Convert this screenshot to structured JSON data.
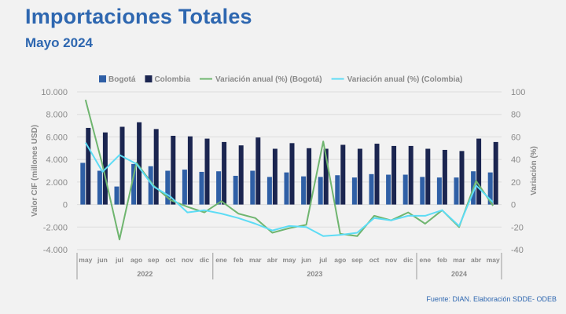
{
  "header": {
    "title": "Importaciones Totales",
    "subtitle": "Mayo 2024"
  },
  "footer": {
    "source": "Fuente: DIAN. Elaboración SDDE- ODEB"
  },
  "colors": {
    "bogota_bar": "#2f5fa6",
    "colombia_bar": "#1b2550",
    "bogota_line": "#6fb56f",
    "colombia_line": "#5ddcf5",
    "title": "#2e67b0"
  },
  "chart_data": {
    "type": "bar",
    "title": "",
    "ylabel": "Valor CIF (millones USD)",
    "y2label": "Variación (%)",
    "ylim": [
      -4000,
      10000
    ],
    "y2lim": [
      -40,
      100
    ],
    "yticks": [
      "10.000",
      "8.000",
      "6.000",
      "4.000",
      "2.000",
      "0",
      "-2.000",
      "-4.000"
    ],
    "y2ticks": [
      "100",
      "80",
      "60",
      "40",
      "20",
      "0",
      "-20",
      "-40"
    ],
    "legend_position": "top",
    "categories": [
      "may",
      "jun",
      "jul",
      "ago",
      "sep",
      "oct",
      "nov",
      "dic",
      "ene",
      "feb",
      "mar",
      "abr",
      "may",
      "jun",
      "jul",
      "ago",
      "sep",
      "oct",
      "nov",
      "dic",
      "ene",
      "feb",
      "mar",
      "abr",
      "may"
    ],
    "years": [
      {
        "label": "2022",
        "start": 0,
        "end": 7
      },
      {
        "label": "2023",
        "start": 8,
        "end": 19
      },
      {
        "label": "2024",
        "start": 20,
        "end": 24
      }
    ],
    "series": [
      {
        "name": "Bogotá",
        "kind": "bar",
        "axis": "left",
        "values": [
          3700,
          3000,
          1600,
          3600,
          3400,
          3000,
          3100,
          2900,
          2950,
          2550,
          3000,
          2450,
          2850,
          2500,
          2450,
          2600,
          2400,
          2700,
          2650,
          2650,
          2450,
          2400,
          2400,
          2950,
          2850
        ]
      },
      {
        "name": "Colombia",
        "kind": "bar",
        "axis": "left",
        "values": [
          6800,
          6400,
          6900,
          7300,
          6700,
          6100,
          6050,
          5850,
          5550,
          5250,
          5950,
          4950,
          5450,
          5000,
          4950,
          5300,
          4950,
          5400,
          5200,
          5200,
          4950,
          4850,
          4750,
          5850,
          5550
        ]
      },
      {
        "name": "Variación anual (%) (Bogotá)",
        "kind": "line",
        "axis": "right",
        "values": [
          93,
          35,
          -31,
          37,
          17,
          4,
          -2,
          -7,
          3,
          -8,
          -12,
          -25,
          -21,
          -18,
          56,
          -26,
          -28,
          -10,
          -14,
          -7,
          -17,
          -5,
          -20,
          21,
          -1
        ]
      },
      {
        "name": "Variación anual (%) (Colombia)",
        "kind": "line",
        "axis": "right",
        "values": [
          55,
          29,
          44,
          36,
          16,
          7,
          -7,
          -5,
          -8,
          -12,
          -17,
          -23,
          -19,
          -20,
          -28,
          -27,
          -25,
          -12,
          -14,
          -10,
          -10,
          -5,
          -19,
          17,
          2
        ]
      }
    ]
  }
}
